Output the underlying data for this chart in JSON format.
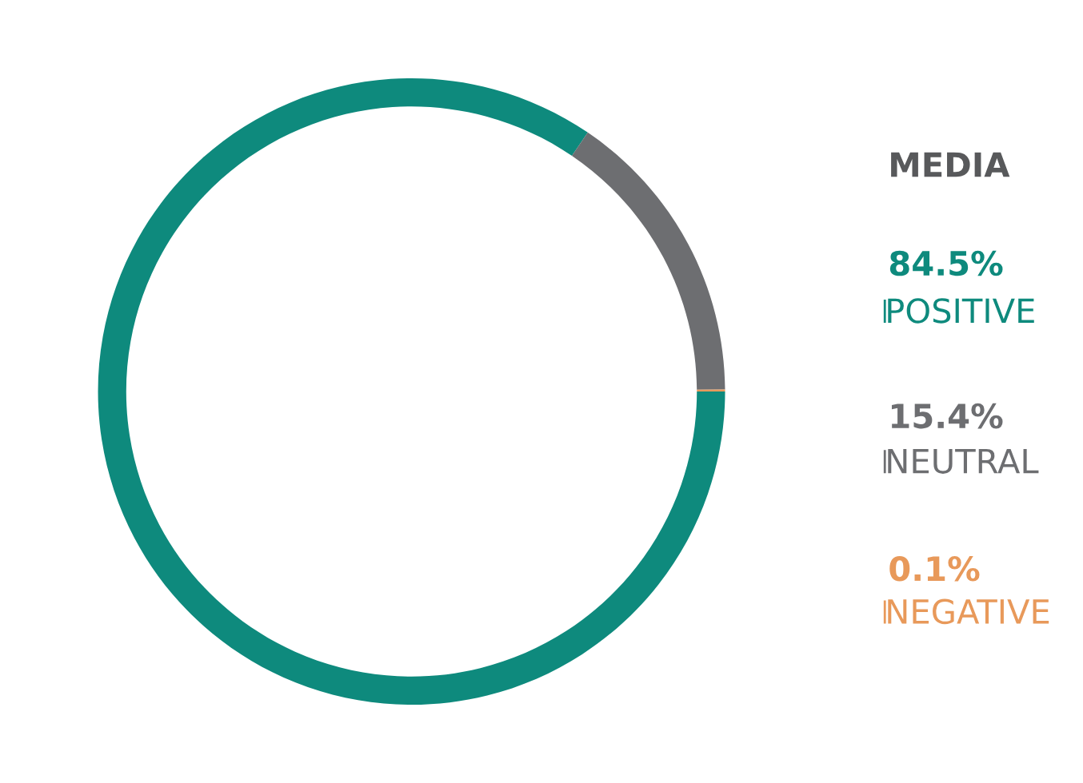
{
  "chart_data": {
    "type": "donut",
    "title": "MEDIA",
    "categories": [
      "POSITIVE",
      "NEUTRAL",
      "NEGATIVE"
    ],
    "values": [
      84.5,
      15.4,
      0.1
    ],
    "colors": [
      "#0e8a7d",
      "#6d6e71",
      "#e8995a"
    ],
    "value_labels": [
      "84.5%",
      "15.4%",
      "0.1%"
    ],
    "legend": "right"
  }
}
